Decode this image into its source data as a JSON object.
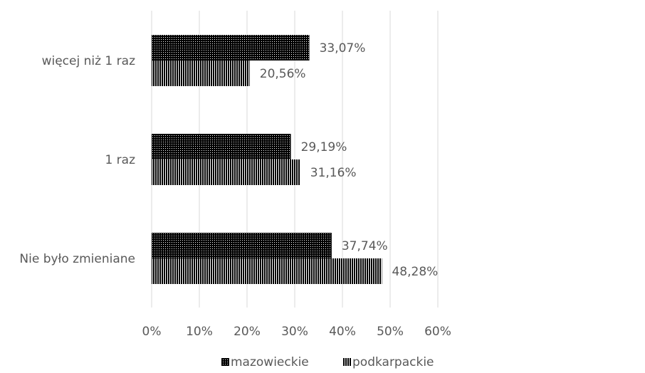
{
  "chart_data": {
    "type": "bar",
    "orientation": "horizontal",
    "categories": [
      "więcej niż 1 raz",
      "1 raz",
      "Nie było zmieniane"
    ],
    "series": [
      {
        "name": "mazowieckie",
        "values": [
          33.07,
          29.19,
          37.74
        ],
        "value_labels": [
          "33,07%",
          "29,19%",
          "37,74%"
        ],
        "pattern": "dots"
      },
      {
        "name": "podkarpackie",
        "values": [
          20.56,
          31.16,
          48.28
        ],
        "value_labels": [
          "20,56%",
          "31,16%",
          "48,28%"
        ],
        "pattern": "vertical-lines"
      }
    ],
    "x_ticks": [
      "0%",
      "10%",
      "20%",
      "30%",
      "40%",
      "50%",
      "60%"
    ],
    "xlim": [
      0,
      60
    ],
    "grid": true,
    "legend_position": "bottom",
    "title": "",
    "xlabel": "",
    "ylabel": ""
  },
  "colors": {
    "bar_fill": "#000000",
    "pattern": "#ffffff",
    "grid": "#d9d9d9",
    "text": "#595959"
  }
}
